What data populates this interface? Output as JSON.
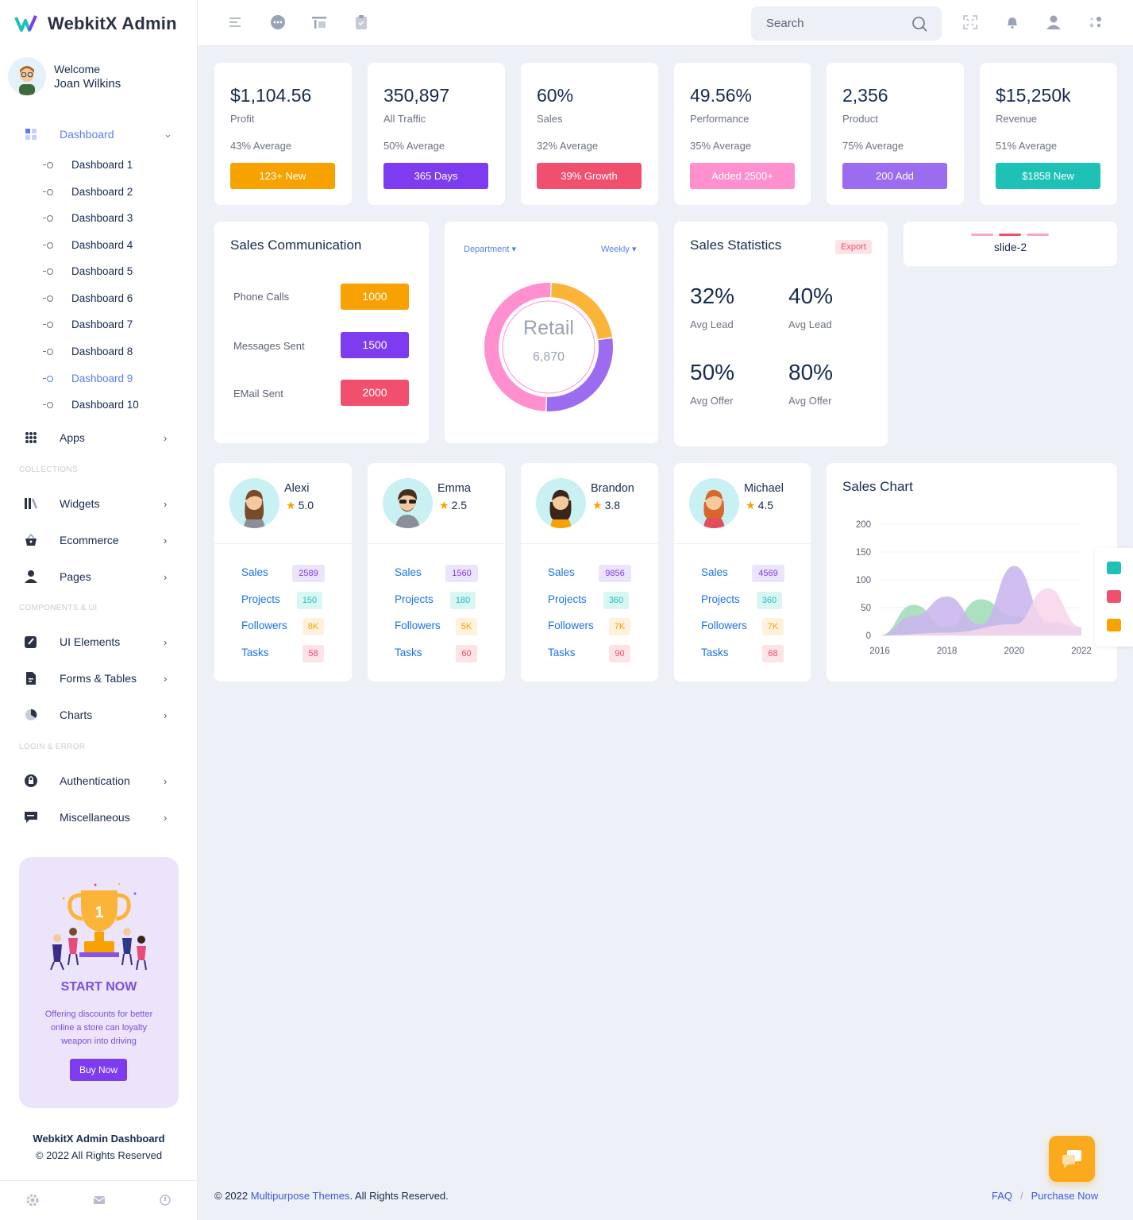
{
  "brand": {
    "name": "WebkitX Admin"
  },
  "user": {
    "welcome": "Welcome",
    "name": "Joan Wilkins"
  },
  "sidebar": {
    "dashboard": "Dashboard",
    "sub": [
      "Dashboard 1",
      "Dashboard 2",
      "Dashboard 3",
      "Dashboard 4",
      "Dashboard 5",
      "Dashboard 6",
      "Dashboard 7",
      "Dashboard 8",
      "Dashboard 9",
      "Dashboard 10"
    ],
    "apps": "Apps",
    "section_collections": "COLLECTIONS",
    "widgets": "Widgets",
    "ecommerce": "Ecommerce",
    "pages": "Pages",
    "section_components": "COMPONENTS & UI",
    "ui_elements": "UI Elements",
    "forms_tables": "Forms & Tables",
    "charts": "Charts",
    "section_login": "LOGIN & ERROR",
    "authentication": "Authentication",
    "misc": "Miscellaneous",
    "promo": {
      "title": "START NOW",
      "desc": "Offering discounts for better online a store can loyalty weapon into driving",
      "button": "Buy Now"
    },
    "footer_title": "WebkitX Admin Dashboard",
    "footer_copy": "© 2022 All Rights Reserved"
  },
  "search": {
    "placeholder": "Search"
  },
  "stats": [
    {
      "value": "$1,104.56",
      "label": "Profit",
      "avg": "43% Average",
      "button": "123+ New",
      "color": "#f7a200"
    },
    {
      "value": "350,897",
      "label": "All Traffic",
      "avg": "50% Average",
      "button": "365 Days",
      "color": "#7d3cf0"
    },
    {
      "value": "60%",
      "label": "Sales",
      "avg": "32% Average",
      "button": "39% Growth",
      "color": "#f0506e"
    },
    {
      "value": "49.56%",
      "label": "Performance",
      "avg": "35% Average",
      "button": "Added 2500+",
      "color": "#ff8fcf"
    },
    {
      "value": "2,356",
      "label": "Product",
      "avg": "75% Average",
      "button": "200 Add",
      "color": "#9b6cf0"
    },
    {
      "value": "$15,250k",
      "label": "Revenue",
      "avg": "51% Average",
      "button": "$1858 New",
      "color": "#1ec1b6"
    }
  ],
  "sales_comm": {
    "title": "Sales Communication",
    "rows": [
      {
        "label": "Phone Calls",
        "value": "1000",
        "color": "#f7a200"
      },
      {
        "label": "Messages Sent",
        "value": "1500",
        "color": "#7d3cf0"
      },
      {
        "label": "EMail Sent",
        "value": "2000",
        "color": "#f0506e"
      }
    ]
  },
  "donut": {
    "dept": "Department",
    "period": "Weekly",
    "center_label": "Retail",
    "center_value": "6,870",
    "segments": [
      {
        "share": 0.22,
        "color": "#fbb438"
      },
      {
        "share": 0.28,
        "color": "#9b6cf0"
      },
      {
        "share": 0.5,
        "color": "#ff8fcf"
      }
    ]
  },
  "sales_stats": {
    "title": "Sales Statistics",
    "export": "Export",
    "items": [
      {
        "value": "32%",
        "label": "Avg Lead"
      },
      {
        "value": "40%",
        "label": "Avg Lead"
      },
      {
        "value": "50%",
        "label": "Avg Offer"
      },
      {
        "value": "80%",
        "label": "Avg Offer"
      }
    ]
  },
  "slider": {
    "label": "slide-2"
  },
  "profiles": [
    {
      "name": "Alexi",
      "rating": "5.0",
      "sales": "2589",
      "projects": "150",
      "followers": "8K",
      "tasks": "58"
    },
    {
      "name": "Emma",
      "rating": "2.5",
      "sales": "1560",
      "projects": "180",
      "followers": "5K",
      "tasks": "60"
    },
    {
      "name": "Brandon",
      "rating": "3.8",
      "sales": "9856",
      "projects": "360",
      "followers": "7K",
      "tasks": "90"
    },
    {
      "name": "Michael",
      "rating": "4.5",
      "sales": "4569",
      "projects": "360",
      "followers": "7K",
      "tasks": "68"
    }
  ],
  "profile_labels": {
    "sales": "Sales",
    "projects": "Projects",
    "followers": "Followers",
    "tasks": "Tasks"
  },
  "chart_data": {
    "type": "area",
    "title": "Sales Chart",
    "x_ticks": [
      "2016",
      "2018",
      "2020",
      "2022"
    ],
    "y_ticks": [
      "0",
      "50",
      "100",
      "150",
      "200"
    ],
    "ylim": [
      0,
      200
    ],
    "xlim": [
      2016,
      2022
    ],
    "series": [
      {
        "color": "#9ddcb4",
        "points": [
          [
            2016,
            0
          ],
          [
            2017,
            55
          ],
          [
            2018,
            15
          ],
          [
            2019,
            65
          ],
          [
            2020,
            35
          ],
          [
            2021,
            20
          ],
          [
            2022,
            10
          ]
        ]
      },
      {
        "color": "#c9b3ef",
        "points": [
          [
            2016,
            0
          ],
          [
            2017,
            35
          ],
          [
            2018,
            70
          ],
          [
            2019,
            20
          ],
          [
            2020,
            125
          ],
          [
            2021,
            25
          ],
          [
            2022,
            15
          ]
        ]
      },
      {
        "color": "#f5d6ea",
        "points": [
          [
            2016,
            0
          ],
          [
            2018,
            5
          ],
          [
            2020,
            20
          ],
          [
            2021,
            85
          ],
          [
            2022,
            15
          ]
        ]
      }
    ]
  },
  "footer": {
    "copy_pre": "© 2022 ",
    "copy_link": "Multipurpose Themes",
    "copy_post": ". All Rights Reserved.",
    "faq": "FAQ",
    "purchase": "Purchase Now"
  }
}
